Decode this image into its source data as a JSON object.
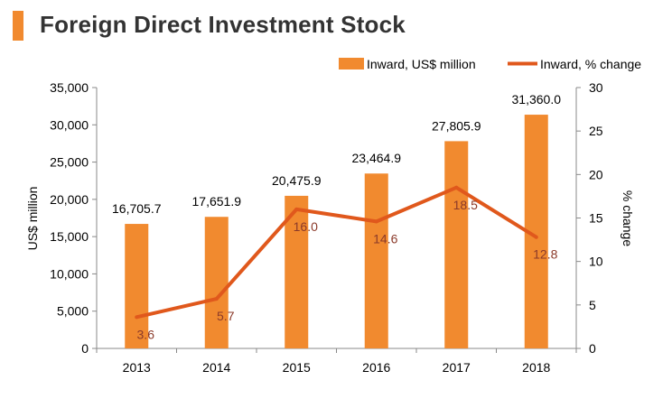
{
  "title": "Foreign Direct Investment Stock",
  "colors": {
    "bar": "#f18a2f",
    "line": "#e0581c",
    "pct_label": "#8b3a2a",
    "accent": "#f18a2f",
    "title": "#333333"
  },
  "chart_data": {
    "type": "bar",
    "title": "Foreign Direct Investment Stock",
    "categories": [
      "2013",
      "2014",
      "2015",
      "2016",
      "2017",
      "2018"
    ],
    "series": [
      {
        "name": "Inward, US$ million",
        "type": "bar",
        "axis": "left",
        "values": [
          16705.7,
          17651.9,
          20475.9,
          23464.9,
          27805.9,
          31360.0
        ],
        "labels": [
          "16,705.7",
          "17,651.9",
          "20,475.9",
          "23,464.9",
          "27,805.9",
          "31,360.0"
        ]
      },
      {
        "name": "Inward, % change",
        "type": "line",
        "axis": "right",
        "values": [
          3.6,
          5.7,
          16.0,
          14.6,
          18.5,
          12.8
        ],
        "labels": [
          "3.6",
          "5.7",
          "16.0",
          "14.6",
          "18.5",
          "12.8"
        ]
      }
    ],
    "ylabel": "US$ million",
    "y2label": "% change",
    "ylim": [
      0,
      35000
    ],
    "y2lim": [
      0,
      30
    ],
    "yticks": [
      "0",
      "5,000",
      "10,000",
      "15,000",
      "20,000",
      "25,000",
      "30,000",
      "35,000"
    ],
    "y2ticks": [
      "0",
      "5",
      "10",
      "15",
      "20",
      "25",
      "30"
    ],
    "legend": [
      "Inward, US$ million",
      "Inward, % change"
    ],
    "legend_position": "top-right",
    "grid": false
  }
}
